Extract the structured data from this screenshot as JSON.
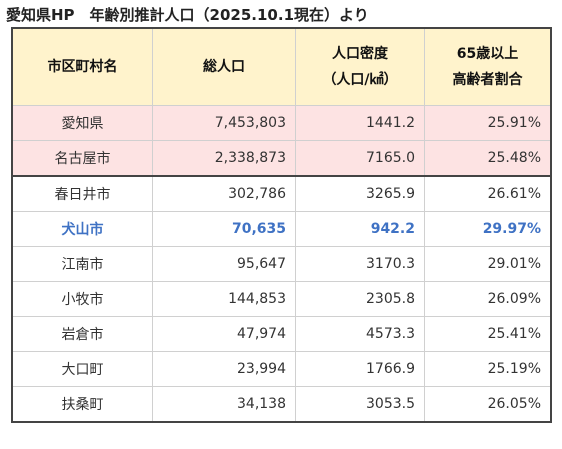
{
  "caption": "愛知県HP　年齢別推計人口（2025.10.1現在）より",
  "table": {
    "headers": {
      "municipality": "市区町村名",
      "population": "総人口",
      "density_line1": "人口密度",
      "density_line2": "（人口/㎢）",
      "elderly_line1": "65歳以上",
      "elderly_line2": "高齢者割合"
    },
    "rows": [
      {
        "name": "愛知県",
        "population": "7,453,803",
        "density": "1441.2",
        "elderly": "25.91%"
      },
      {
        "name": "名古屋市",
        "population": "2,338,873",
        "density": "7165.0",
        "elderly": "25.48%"
      },
      {
        "name": "春日井市",
        "population": "302,786",
        "density": "3265.9",
        "elderly": "26.61%"
      },
      {
        "name": "犬山市",
        "population": "70,635",
        "density": "942.2",
        "elderly": "29.97%"
      },
      {
        "name": "江南市",
        "population": "95,647",
        "density": "3170.3",
        "elderly": "29.01%"
      },
      {
        "name": "小牧市",
        "population": "144,853",
        "density": "2305.8",
        "elderly": "26.09%"
      },
      {
        "name": "岩倉市",
        "population": "47,974",
        "density": "4573.3",
        "elderly": "25.41%"
      },
      {
        "name": "大口町",
        "population": "23,994",
        "density": "1766.9",
        "elderly": "25.19%"
      },
      {
        "name": "扶桑町",
        "population": "34,138",
        "density": "3053.5",
        "elderly": "26.05%"
      }
    ]
  },
  "colors": {
    "header_bg": "#fff3cc",
    "prefecture_row_bg": "#fde3e3",
    "highlight_text": "#3f72c4",
    "border_dark": "#444444",
    "border_light": "#d0d0d0"
  }
}
